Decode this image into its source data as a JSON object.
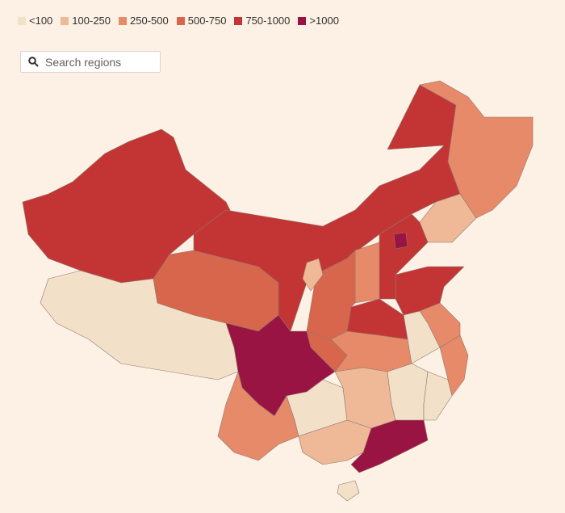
{
  "legend": {
    "items": [
      {
        "label": "<100",
        "color": "#f3e0c9"
      },
      {
        "label": "100-250",
        "color": "#efb896"
      },
      {
        "label": "250-500",
        "color": "#e78a6a"
      },
      {
        "label": "500-750",
        "color": "#d8664c"
      },
      {
        "label": "750-1000",
        "color": "#c33535"
      },
      {
        "label": ">1000",
        "color": "#9a1443"
      }
    ]
  },
  "search": {
    "placeholder": "Search regions"
  }
}
